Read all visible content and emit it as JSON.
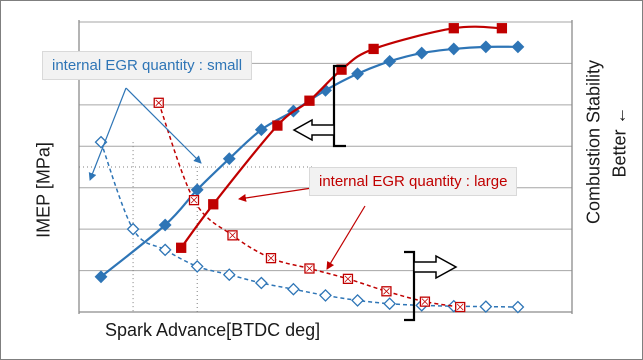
{
  "chart_data": {
    "type": "line",
    "xlabel": "Spark Advance[BTDC deg]",
    "ylabel_left": "IMEP [MPa]",
    "ylabel_right_line1": "Combustion Stability",
    "ylabel_right_line2": "Better ←",
    "x_ticks_labeled": false,
    "y_ticks_labeled": false,
    "grid": {
      "horizontal": true,
      "vertical": false
    },
    "xlim": [
      0,
      14
    ],
    "ylim_left": [
      0,
      7
    ],
    "ylim_right": [
      0,
      7
    ],
    "series": [
      {
        "key": "imep_small",
        "axis": "left",
        "color": "#2e75b6",
        "marker": "diamond-filled",
        "dashed": false,
        "x": [
          0,
          2,
          3,
          4,
          5,
          6,
          7,
          8,
          9,
          10,
          11,
          12,
          13
        ],
        "y": [
          0.85,
          2.1,
          2.95,
          3.7,
          4.4,
          4.85,
          5.35,
          5.75,
          6.05,
          6.25,
          6.35,
          6.4,
          6.4
        ]
      },
      {
        "key": "imep_large",
        "axis": "left",
        "color": "#c00000",
        "marker": "square-filled",
        "dashed": false,
        "x": [
          2.5,
          3.5,
          5.5,
          6.5,
          7.5,
          8.5,
          11,
          12.5
        ],
        "y": [
          1.55,
          2.6,
          4.5,
          5.1,
          5.85,
          6.35,
          6.85,
          6.85
        ]
      },
      {
        "key": "stability_small",
        "axis": "right",
        "color": "#2e75b6",
        "marker": "diamond-open",
        "dashed": true,
        "x": [
          0,
          1,
          2,
          3,
          4,
          5,
          6,
          7,
          8,
          9,
          10,
          11,
          12,
          13
        ],
        "y": [
          4.1,
          2.0,
          1.5,
          1.1,
          0.9,
          0.7,
          0.55,
          0.4,
          0.28,
          0.2,
          0.16,
          0.14,
          0.13,
          0.12
        ]
      },
      {
        "key": "stability_large",
        "axis": "right",
        "color": "#c00000",
        "marker": "square-open",
        "dashed": true,
        "x": [
          1.8,
          2.9,
          4.1,
          5.3,
          6.5,
          7.7,
          8.9,
          10.1,
          11.2
        ],
        "y": [
          5.05,
          2.7,
          1.85,
          1.3,
          1.05,
          0.8,
          0.5,
          0.25,
          0.12
        ]
      }
    ],
    "annotations": [
      {
        "key": "small",
        "text": "internal EGR quantity : small",
        "color": "#2e75b6"
      },
      {
        "key": "large",
        "text": "internal EGR quantity : large",
        "color": "#c00000"
      }
    ]
  }
}
